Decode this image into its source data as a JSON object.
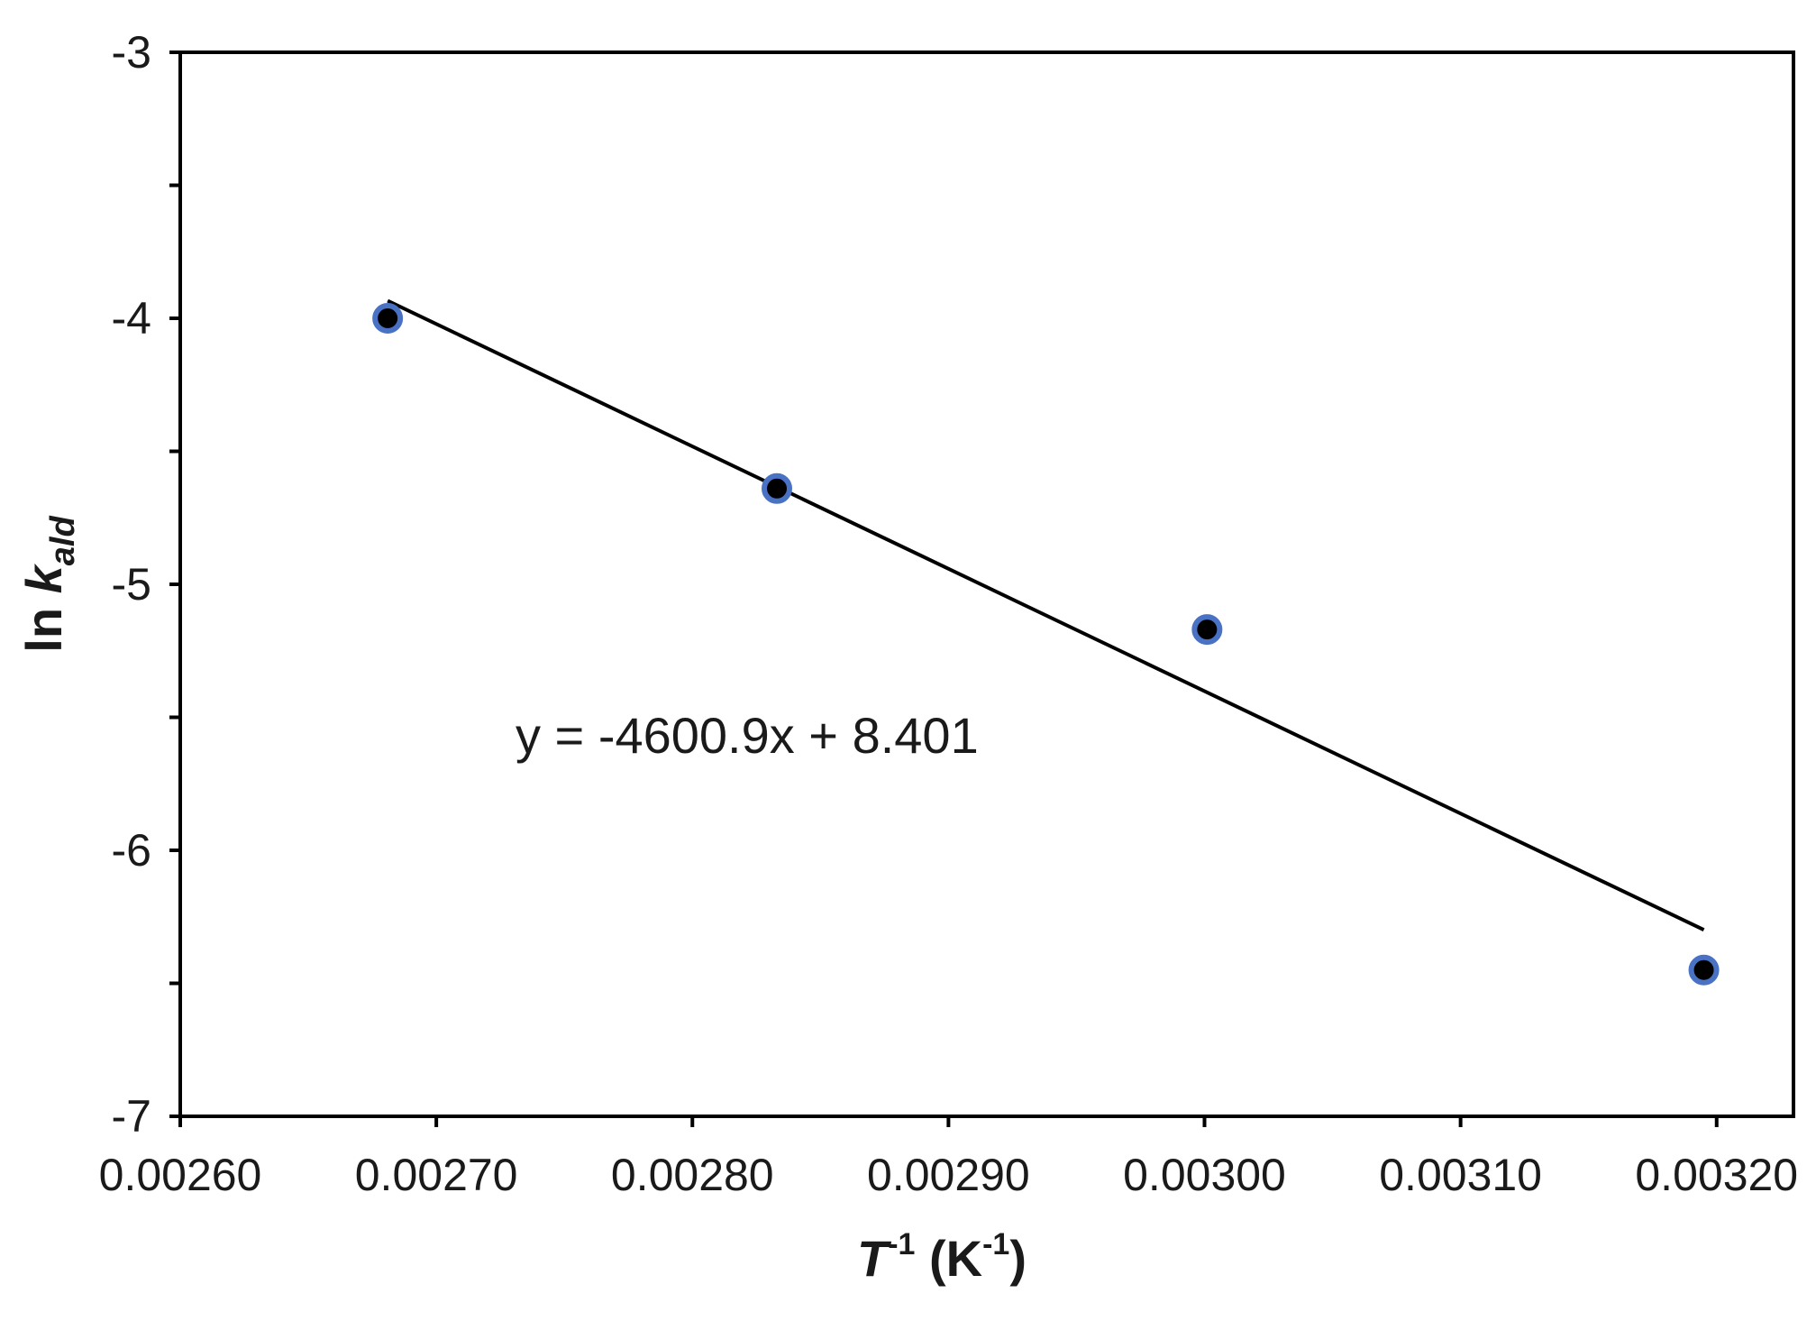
{
  "chart_data": {
    "type": "scatter",
    "x": [
      0.002681,
      0.002833,
      0.003001,
      0.003195
    ],
    "y": [
      -4.0,
      -4.64,
      -5.17,
      -6.45
    ],
    "trendline": {
      "slope": -4600.9,
      "intercept": 8.401,
      "x_range": [
        0.002681,
        0.003195
      ],
      "equation_label": "y = -4600.9x + 8.401"
    },
    "xlim": [
      0.0026,
      0.00323
    ],
    "ylim": [
      -7,
      -3
    ],
    "xticks": [
      0.0026,
      0.0027,
      0.0028,
      0.0029,
      0.003,
      0.0031,
      0.0032
    ],
    "xtick_labels": [
      "0.00260",
      "0.00270",
      "0.00280",
      "0.00290",
      "0.00300",
      "0.00310",
      "0.00320"
    ],
    "yticks": [
      -7,
      -6,
      -5,
      -4,
      -3
    ],
    "ytick_labels": [
      "-7",
      "-6",
      "-5",
      "-4",
      "-3"
    ],
    "xlabel": {
      "main": "T",
      "sup": "-1",
      "rest": " (K",
      "sup2": "-1",
      "end": ")"
    },
    "ylabel": {
      "main": "ln ",
      "italic": "k",
      "sub": "ald"
    },
    "marker_color": "#000000",
    "marker_edge_color": "#4a72c4",
    "line_color": "#000000",
    "grid": false,
    "legend": false
  }
}
